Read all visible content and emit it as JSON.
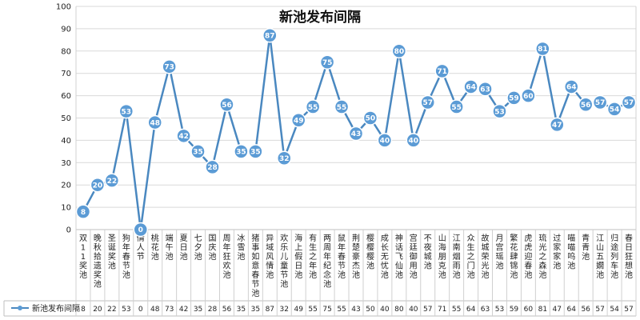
{
  "chart_data": {
    "type": "line",
    "title": "新池发布间隔",
    "ylim": [
      0,
      100
    ],
    "yticks": [
      0,
      10,
      20,
      30,
      40,
      50,
      60,
      70,
      80,
      90,
      100
    ],
    "grid": true,
    "legend_position": "bottom-left (table)",
    "colors": {
      "line": "#4a88c0",
      "marker_fill": "#5b9bd5",
      "marker_stroke": "#ffffff",
      "grid": "#d9d9d9"
    },
    "categories": [
      "双11奖池",
      "晚秋拾遗奖池",
      "圣诞奖池",
      "狗年春节池",
      "情人节",
      "桃花池",
      "端午池",
      "夏日池",
      "七夕池",
      "国庆池",
      "周年狂欢池",
      "冰雪池",
      "猪事如意春节池",
      "异域风情池",
      "欢乐儿童节池",
      "海上假日池",
      "有生之年池",
      "两周年纪念池",
      "鼠年春节池",
      "荆楚豪杰池",
      "樱樱樱池",
      "成长无忧池",
      "神话飞仙池",
      "宫廷御用池",
      "不夜城池",
      "山海朋克池",
      "江南烟雨池",
      "众生之门池",
      "故城荣光池",
      "月宫瑶池",
      "繁花肆锦池",
      "虎虎迎春池",
      "琉光之森池",
      "过家家池",
      "喵喵呜池",
      "青青池",
      "江山五嫺池",
      "归途列车池",
      "春日狂想池"
    ],
    "series": [
      {
        "name": "新池发布间隔",
        "values": [
          8,
          20,
          22,
          53,
          0,
          48,
          73,
          42,
          35,
          28,
          56,
          35,
          35,
          87,
          32,
          49,
          55,
          75,
          55,
          43,
          50,
          40,
          80,
          40,
          57,
          71,
          55,
          64,
          63,
          53,
          59,
          60,
          81,
          47,
          64,
          56,
          57,
          54,
          57
        ]
      }
    ]
  }
}
